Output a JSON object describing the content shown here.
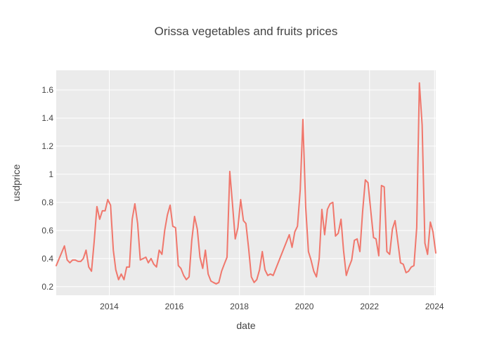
{
  "chart_data": {
    "type": "line",
    "title": "Orissa vegetables and fruits prices",
    "xlabel": "date",
    "ylabel": "usdprice",
    "xlim": [
      "2012-05-15",
      "2024-01-15"
    ],
    "ylim": [
      0.139,
      1.74
    ],
    "x_ticks": [
      {
        "date": "2014-01-01",
        "label": "2014"
      },
      {
        "date": "2016-01-01",
        "label": "2016"
      },
      {
        "date": "2018-01-01",
        "label": "2018"
      },
      {
        "date": "2020-01-01",
        "label": "2020"
      },
      {
        "date": "2022-01-01",
        "label": "2022"
      },
      {
        "date": "2024-01-01",
        "label": "2024"
      }
    ],
    "y_ticks": [
      {
        "value": 0.2,
        "label": "0.2"
      },
      {
        "value": 0.4,
        "label": "0.4"
      },
      {
        "value": 0.6,
        "label": "0.6"
      },
      {
        "value": 0.8,
        "label": "0.8"
      },
      {
        "value": 1.0,
        "label": "1"
      },
      {
        "value": 1.2,
        "label": "1.2"
      },
      {
        "value": 1.4,
        "label": "1.4"
      },
      {
        "value": 1.6,
        "label": "1.6"
      }
    ],
    "grid": true,
    "colors": {
      "plot_bg": "#ebebeb",
      "grid": "#ffffff",
      "line": "#f0776c",
      "text": "#444444"
    },
    "series": [
      {
        "x": [
          "2012-05-15",
          "2012-08-15",
          "2012-09-15",
          "2012-10-15",
          "2012-11-15",
          "2012-12-15",
          "2013-01-15",
          "2013-02-15",
          "2013-03-15",
          "2013-04-15",
          "2013-05-15",
          "2013-06-15",
          "2013-07-15",
          "2013-08-15",
          "2013-09-15",
          "2013-10-15",
          "2013-11-15",
          "2013-12-15",
          "2014-01-15",
          "2014-02-15",
          "2014-03-15",
          "2014-04-15",
          "2014-05-15",
          "2014-06-15",
          "2014-07-15",
          "2014-08-15",
          "2014-09-15",
          "2014-10-15",
          "2014-11-15",
          "2014-12-15",
          "2015-01-15",
          "2015-02-15",
          "2015-03-15",
          "2015-04-15",
          "2015-05-15",
          "2015-06-15",
          "2015-07-15",
          "2015-08-15",
          "2015-09-15",
          "2015-10-15",
          "2015-11-15",
          "2015-12-15",
          "2016-01-15",
          "2016-02-15",
          "2016-03-15",
          "2016-04-15",
          "2016-05-15",
          "2016-06-15",
          "2016-07-15",
          "2016-08-15",
          "2016-09-15",
          "2016-10-15",
          "2016-11-15",
          "2016-12-15",
          "2017-01-15",
          "2017-02-15",
          "2017-03-15",
          "2017-04-15",
          "2017-05-15",
          "2017-06-15",
          "2017-07-15",
          "2017-08-15",
          "2017-09-15",
          "2017-10-15",
          "2017-11-15",
          "2017-12-15",
          "2018-01-15",
          "2018-02-15",
          "2018-03-15",
          "2018-04-15",
          "2018-05-15",
          "2018-06-15",
          "2018-07-15",
          "2018-08-15",
          "2018-09-15",
          "2018-10-15",
          "2018-11-15",
          "2018-12-15",
          "2019-01-15",
          "2019-07-15",
          "2019-08-15",
          "2019-09-15",
          "2019-10-15",
          "2019-11-15",
          "2019-12-15",
          "2020-01-15",
          "2020-02-15",
          "2020-03-15",
          "2020-04-15",
          "2020-05-15",
          "2020-06-15",
          "2020-07-15",
          "2020-08-15",
          "2020-09-15",
          "2020-10-15",
          "2020-11-15",
          "2020-12-15",
          "2021-01-15",
          "2021-02-15",
          "2021-03-15",
          "2021-04-15",
          "2021-05-15",
          "2021-06-15",
          "2021-07-15",
          "2021-08-15",
          "2021-09-15",
          "2021-10-15",
          "2021-11-15",
          "2021-12-15",
          "2022-01-15",
          "2022-02-15",
          "2022-03-15",
          "2022-04-15",
          "2022-05-15",
          "2022-06-15",
          "2022-07-15",
          "2022-08-15",
          "2022-09-15",
          "2022-10-15",
          "2022-11-15",
          "2022-12-15",
          "2023-01-15",
          "2023-02-15",
          "2023-03-15",
          "2023-04-15",
          "2023-05-15",
          "2023-06-15",
          "2023-07-15",
          "2023-08-15",
          "2023-09-15",
          "2023-10-15",
          "2023-11-15",
          "2023-12-15",
          "2024-01-15"
        ],
        "y": [
          0.35,
          0.49,
          0.39,
          0.37,
          0.39,
          0.39,
          0.38,
          0.38,
          0.4,
          0.46,
          0.34,
          0.31,
          0.52,
          0.77,
          0.68,
          0.74,
          0.74,
          0.82,
          0.78,
          0.46,
          0.32,
          0.25,
          0.29,
          0.25,
          0.34,
          0.34,
          0.68,
          0.79,
          0.65,
          0.39,
          0.4,
          0.41,
          0.37,
          0.4,
          0.36,
          0.34,
          0.46,
          0.43,
          0.6,
          0.71,
          0.78,
          0.63,
          0.62,
          0.35,
          0.33,
          0.28,
          0.25,
          0.27,
          0.53,
          0.7,
          0.61,
          0.41,
          0.33,
          0.46,
          0.29,
          0.24,
          0.23,
          0.22,
          0.23,
          0.31,
          0.36,
          0.41,
          1.02,
          0.79,
          0.54,
          0.62,
          0.82,
          0.67,
          0.65,
          0.47,
          0.27,
          0.23,
          0.25,
          0.32,
          0.45,
          0.32,
          0.28,
          0.29,
          0.28,
          0.57,
          0.48,
          0.59,
          0.63,
          0.89,
          1.39,
          0.77,
          0.45,
          0.39,
          0.31,
          0.27,
          0.4,
          0.75,
          0.57,
          0.75,
          0.79,
          0.8,
          0.56,
          0.58,
          0.68,
          0.46,
          0.28,
          0.34,
          0.39,
          0.53,
          0.54,
          0.45,
          0.73,
          0.96,
          0.94,
          0.74,
          0.55,
          0.54,
          0.42,
          0.92,
          0.91,
          0.45,
          0.43,
          0.61,
          0.67,
          0.52,
          0.37,
          0.36,
          0.3,
          0.31,
          0.34,
          0.35,
          0.62,
          1.65,
          1.35,
          0.51,
          0.43,
          0.66,
          0.59,
          0.44
        ]
      }
    ]
  }
}
